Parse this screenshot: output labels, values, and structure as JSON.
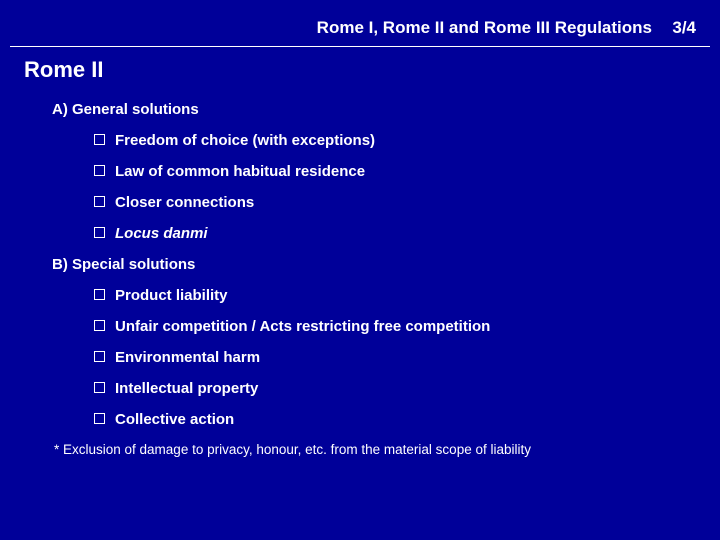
{
  "header": {
    "title": "Rome I, Rome II and Rome III Regulations",
    "page": "3/4"
  },
  "slide": {
    "title": "Rome II",
    "sectionA": {
      "label": "A)  General solutions",
      "items": [
        {
          "text": "Freedom of choice (with exceptions)",
          "italic": false
        },
        {
          "text": "Law of common habitual residence",
          "italic": false
        },
        {
          "text": "Closer connections",
          "italic": false
        },
        {
          "text": "Locus danmi",
          "italic": true
        }
      ]
    },
    "sectionB": {
      "label": "B)  Special solutions",
      "items": [
        {
          "text": "Product liability"
        },
        {
          "text": "Unfair competition / Acts restricting free competition"
        },
        {
          "text": "Environmental harm"
        },
        {
          "text": "Intellectual property"
        },
        {
          "text": "Collective action"
        }
      ]
    },
    "footnote": "* Exclusion of damage to privacy, honour, etc. from the material scope of liability"
  },
  "colors": {
    "background": "#000099",
    "text": "#ffffff",
    "divider": "#ffffff"
  }
}
